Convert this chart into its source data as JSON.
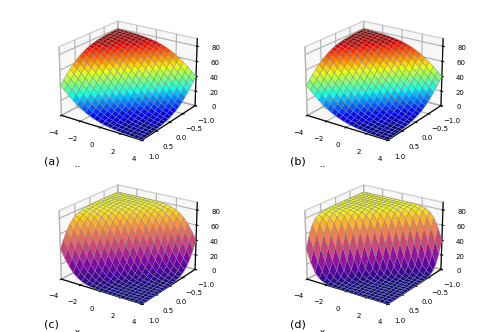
{
  "x_range": [
    -1,
    1
  ],
  "t_range": [
    -4,
    4
  ],
  "nx": 20,
  "nt": 20,
  "subplot_labels": [
    "(a)",
    "(b)",
    "(c)",
    "(d)"
  ],
  "x_label": "x",
  "t_ticks": [
    -4,
    -2,
    0,
    2,
    4
  ],
  "x_ticks": [
    -1.0,
    -0.5,
    0.0,
    0.5,
    1.0
  ],
  "z_ticks": [
    0,
    20,
    40,
    60,
    80
  ],
  "zlim": [
    0,
    90
  ],
  "elev": 22,
  "azim": -55,
  "figsize": [
    5.0,
    3.32
  ],
  "dpi": 100,
  "background_color": "#ffffff",
  "pane_color": "#f0f0f0",
  "edge_color": "#888888",
  "edge_linewidth": 0.3,
  "alpha": 1.0,
  "scale": 80.0,
  "steepness_exact": 2.5,
  "steepness_b1": 2.5,
  "steepness_b075": 5.0,
  "steepness_b05": 8.0
}
